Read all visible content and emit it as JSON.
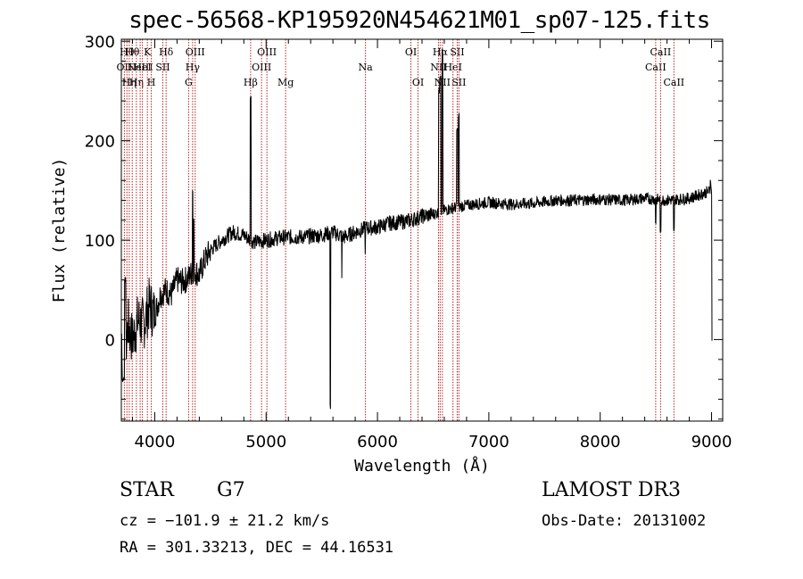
{
  "chart_data": {
    "type": "line",
    "title": "spec-56568-KP195920N454621M01_sp07-125.fits",
    "xlabel": "Wavelength (Å)",
    "ylabel": "Flux (relative)",
    "xlim": [
      3700,
      9100
    ],
    "ylim": [
      -82,
      302
    ],
    "xticks": [
      4000,
      5000,
      6000,
      7000,
      8000,
      9000
    ],
    "yticks": [
      0,
      100,
      200,
      300
    ],
    "anchors": [
      [
        3700,
        5
      ],
      [
        3730,
        -20
      ],
      [
        3760,
        15
      ],
      [
        3800,
        0
      ],
      [
        3850,
        20
      ],
      [
        3900,
        15
      ],
      [
        3950,
        35
      ],
      [
        4000,
        25
      ],
      [
        4050,
        45
      ],
      [
        4100,
        50
      ],
      [
        4150,
        45
      ],
      [
        4200,
        60
      ],
      [
        4250,
        58
      ],
      [
        4300,
        62
      ],
      [
        4350,
        70
      ],
      [
        4400,
        65
      ],
      [
        4450,
        80
      ],
      [
        4500,
        90
      ],
      [
        4600,
        100
      ],
      [
        4700,
        108
      ],
      [
        4800,
        105
      ],
      [
        4860,
        100
      ],
      [
        4900,
        98
      ],
      [
        5000,
        100
      ],
      [
        5100,
        102
      ],
      [
        5200,
        103
      ],
      [
        5300,
        103
      ],
      [
        5400,
        104
      ],
      [
        5500,
        105
      ],
      [
        5600,
        108
      ],
      [
        5700,
        103
      ],
      [
        5800,
        108
      ],
      [
        5900,
        112
      ],
      [
        6000,
        113
      ],
      [
        6100,
        117
      ],
      [
        6200,
        118
      ],
      [
        6300,
        120
      ],
      [
        6400,
        124
      ],
      [
        6500,
        126
      ],
      [
        6600,
        130
      ],
      [
        6700,
        133
      ],
      [
        6800,
        135
      ],
      [
        7000,
        138
      ],
      [
        7200,
        136
      ],
      [
        7400,
        137
      ],
      [
        7600,
        140
      ],
      [
        7800,
        140
      ],
      [
        8000,
        141
      ],
      [
        8200,
        140
      ],
      [
        8400,
        142
      ],
      [
        8600,
        140
      ],
      [
        8800,
        142
      ],
      [
        9000,
        150
      ]
    ],
    "features": [
      [
        3720,
        -40,
        25
      ],
      [
        3734,
        60,
        12
      ],
      [
        4861,
        245,
        6
      ],
      [
        4340,
        150,
        6
      ],
      [
        4350,
        120,
        5
      ],
      [
        6563,
        265,
        10
      ],
      [
        6583,
        290,
        8
      ],
      [
        6553,
        250,
        8
      ],
      [
        6716,
        210,
        10
      ],
      [
        6731,
        225,
        8
      ],
      [
        5577,
        -68,
        5
      ],
      [
        5680,
        60,
        5
      ],
      [
        5890,
        85,
        5
      ],
      [
        8498,
        118,
        6
      ],
      [
        8542,
        110,
        6
      ],
      [
        8662,
        110,
        6
      ],
      [
        8990,
        160,
        5
      ],
      [
        9005,
        0,
        4
      ]
    ],
    "lines": [
      {
        "wavelength": 3727,
        "label": "OII",
        "row": 2
      },
      {
        "wavelength": 3750,
        "label": "Hθ",
        "row": 1
      },
      {
        "wavelength": 3771,
        "label": "Hη",
        "row": 3
      },
      {
        "wavelength": 3798,
        "label": "Hθ",
        "row": 1
      },
      {
        "wavelength": 3835,
        "label": "Hη",
        "row": 3
      },
      {
        "wavelength": 3869,
        "label": "NeIII",
        "row": 2
      },
      {
        "wavelength": 3889,
        "label": "HeI",
        "row": 2
      },
      {
        "wavelength": 3934,
        "label": "K",
        "row": 1
      },
      {
        "wavelength": 3969,
        "label": "H",
        "row": 3
      },
      {
        "wavelength": 4072,
        "label": "SII",
        "row": 2
      },
      {
        "wavelength": 4102,
        "label": "Hδ",
        "row": 1
      },
      {
        "wavelength": 4304,
        "label": "G",
        "row": 3
      },
      {
        "wavelength": 4340,
        "label": "Hγ",
        "row": 2
      },
      {
        "wavelength": 4363,
        "label": "OIII",
        "row": 1
      },
      {
        "wavelength": 4861,
        "label": "Hβ",
        "row": 3
      },
      {
        "wavelength": 4959,
        "label": "OIII",
        "row": 2
      },
      {
        "wavelength": 5007,
        "label": "OIII",
        "row": 1
      },
      {
        "wavelength": 5175,
        "label": "Mg",
        "row": 3
      },
      {
        "wavelength": 5892,
        "label": "Na",
        "row": 2
      },
      {
        "wavelength": 6300,
        "label": "OI",
        "row": 1
      },
      {
        "wavelength": 6364,
        "label": "OI",
        "row": 3
      },
      {
        "wavelength": 6548,
        "label": "NII",
        "row": 2
      },
      {
        "wavelength": 6563,
        "label": "Hα",
        "row": 1
      },
      {
        "wavelength": 6583,
        "label": "NII",
        "row": 3
      },
      {
        "wavelength": 6678,
        "label": "HeI",
        "row": 2
      },
      {
        "wavelength": 6716,
        "label": "SII",
        "row": 1
      },
      {
        "wavelength": 6731,
        "label": "SII",
        "row": 3
      },
      {
        "wavelength": 8498,
        "label": "CaII",
        "row": 2
      },
      {
        "wavelength": 8542,
        "label": "CaII",
        "row": 1
      },
      {
        "wavelength": 8662,
        "label": "CaII",
        "row": 3
      }
    ]
  },
  "info": {
    "class": "STAR",
    "subclass": "G7",
    "survey": "LAMOST DR3",
    "cz": "cz = −101.9 ± 21.2 km/s",
    "obs_date": "Obs-Date: 20131002",
    "coords": "RA = 301.33213, DEC =  44.16531"
  },
  "colors": {
    "spectrum": "#000000",
    "line_markers": "#b22222",
    "axes": "#000000"
  }
}
